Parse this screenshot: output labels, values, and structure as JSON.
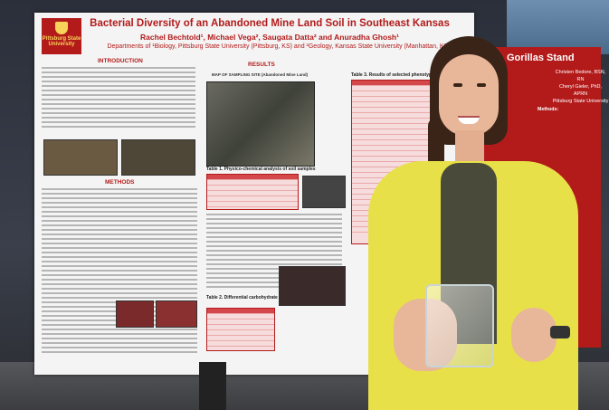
{
  "poster": {
    "logo_text": "Pittsburg State University",
    "title": "Bacterial Diversity of an Abandoned Mine Land Soil in Southeast Kansas",
    "authors": "Rachel Bechtold¹, Michael Vega², Saugata Datta² and Anuradha Ghosh¹",
    "departments": "Departments of ¹Biology, Pittsburg State University (Pittsburg, KS) and ²Geology, Kansas State University (Manhattan, KS)",
    "sections": {
      "introduction": "INTRODUCTION",
      "methods": "METHODS",
      "results": "RESULTS",
      "table1": "Table 1. Physico-chemical analysis of soil samples",
      "table2": "Table 2. Differential carbohydrate fermentation profile",
      "table3": "Table 3. Results of selected phenotypic tests",
      "map_title": "MAP OF SAMPLING SITE (Abandoned Mine Land)"
    }
  },
  "right_poster": {
    "title": "Gorillas Stand",
    "names": [
      "Christen Bedore, BSN, RN",
      "Cheryl Gieler, PhD, APRN",
      "Pittsburg State University"
    ],
    "methods_label": "Methods:"
  },
  "colors": {
    "poster_red": "#b31b1b",
    "cardigan_yellow": "#e8e048",
    "hair_brown": "#3a2418"
  }
}
